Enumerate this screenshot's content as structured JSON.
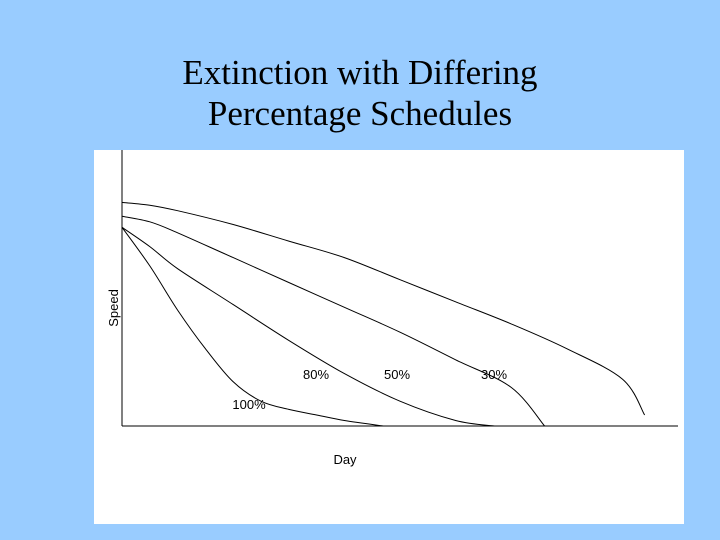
{
  "slide": {
    "title_line1": "Extinction with Differing",
    "title_line2": "Percentage Schedules",
    "background_color": "#99ccff"
  },
  "chart_data": {
    "type": "line",
    "title": "",
    "xlabel": "Day",
    "ylabel": "Speed",
    "xlim": [
      0,
      100
    ],
    "ylim": [
      0,
      100
    ],
    "grid": false,
    "legend": "none",
    "series": [
      {
        "name": "100%",
        "x": [
          0,
          5,
          10,
          15,
          20,
          25,
          30,
          35,
          40,
          47
        ],
        "y": [
          72,
          58,
          42,
          28,
          16,
          9,
          6,
          4,
          2,
          0
        ]
      },
      {
        "name": "80%",
        "x": [
          0,
          5,
          10,
          20,
          30,
          40,
          50,
          60,
          67
        ],
        "y": [
          72,
          65,
          57,
          44,
          31,
          19,
          9,
          2,
          0
        ]
      },
      {
        "name": "50%",
        "x": [
          0,
          5,
          10,
          20,
          30,
          40,
          50,
          60,
          70,
          76
        ],
        "y": [
          76,
          74,
          70,
          61,
          52,
          43,
          34,
          24,
          14,
          0
        ]
      },
      {
        "name": "30%",
        "x": [
          0,
          5,
          10,
          20,
          30,
          40,
          50,
          60,
          70,
          80,
          90,
          94
        ],
        "y": [
          81,
          80,
          78,
          73,
          67,
          61,
          53,
          45,
          37,
          28,
          17,
          4
        ]
      }
    ]
  }
}
